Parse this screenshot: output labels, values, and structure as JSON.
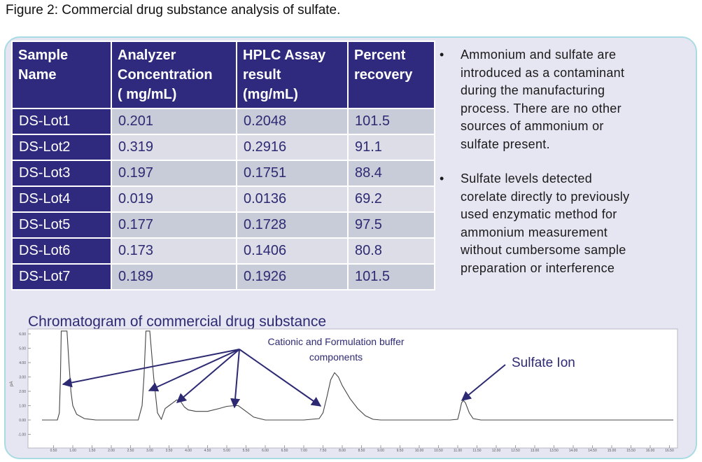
{
  "figure_title": "Figure 2: Commercial drug substance analysis of sulfate.",
  "table": {
    "headers": [
      [
        "Sample",
        "Name"
      ],
      [
        "Analyzer",
        "Concentration",
        "( mg/mL)"
      ],
      [
        "HPLC Assay",
        "result",
        "(mg/mL)"
      ],
      [
        "Percent",
        "recovery"
      ]
    ],
    "rows": [
      {
        "name": "DS-Lot1",
        "analyzer": "0.201",
        "hplc": "0.2048",
        "recovery": "101.5"
      },
      {
        "name": "DS-Lot2",
        "analyzer": "0.319",
        "hplc": "0.2916",
        "recovery": "91.1"
      },
      {
        "name": "DS-Lot3",
        "analyzer": "0.197",
        "hplc": "0.1751",
        "recovery": "88.4"
      },
      {
        "name": "DS-Lot4",
        "analyzer": "0.019",
        "hplc": "0.0136",
        "recovery": "69.2"
      },
      {
        "name": "DS-Lot5",
        "analyzer": "0.177",
        "hplc": "0.1728",
        "recovery": "97.5"
      },
      {
        "name": "DS-Lot6",
        "analyzer": "0.173",
        "hplc": "0.1406",
        "recovery": "80.8"
      },
      {
        "name": "DS-Lot7",
        "analyzer": "0.189",
        "hplc": "0.1926",
        "recovery": "101.5"
      }
    ]
  },
  "bullets": [
    [
      "Ammonium and sulfate are",
      "introduced as a contaminant",
      "during the manufacturing",
      "process. There are no other",
      "sources of ammonium or",
      "sulfate present."
    ],
    [
      "Sulfate levels detected",
      "corelate directly to previously",
      "used enzymatic method for",
      "ammonium measurement",
      "without cumbersome sample",
      "preparation or interference"
    ]
  ],
  "bullet_symbol": "•",
  "chromatogram": {
    "title": "Chromatogram of commercial drug substance",
    "annotation_buffer": [
      "Cationic and Formulation buffer",
      "components"
    ],
    "annotation_sulfate": "Sulfate Ion",
    "ylabel": "pA",
    "colors": {
      "title": "#2d2a73",
      "arrow": "#2d2a73",
      "trace": "#444444"
    }
  },
  "chart_data": {
    "type": "line",
    "title": "Chromatogram of commercial drug substance",
    "xlabel": "",
    "ylabel": "pA",
    "xlim": [
      0.2,
      16.6
    ],
    "ylim": [
      -1.2,
      6.2
    ],
    "x_ticks": [
      "0.50",
      "1.00",
      "1.50",
      "2.00",
      "2.50",
      "3.00",
      "3.50",
      "4.00",
      "4.50",
      "5.00",
      "5.50",
      "6.00",
      "6.50",
      "7.00",
      "7.50",
      "8.00",
      "8.50",
      "9.00",
      "9.50",
      "10.00",
      "10.50",
      "11.00",
      "11.50",
      "12.00",
      "12.50",
      "13.00",
      "13.50",
      "14.00",
      "14.50",
      "15.00",
      "15.50",
      "16.00",
      "16.50"
    ],
    "y_ticks": [
      "6.00",
      "5.00",
      "4.00",
      "3.00",
      "2.00",
      "1.00",
      "0.00",
      "-1.00"
    ],
    "grid": false,
    "series": [
      {
        "x": [
          0.2,
          0.6,
          0.65,
          0.68,
          0.7,
          0.72,
          0.75,
          0.85,
          0.9,
          0.95,
          1.0,
          1.1,
          1.3,
          1.6,
          2.0,
          2.4,
          2.7,
          2.8,
          2.85,
          2.9,
          2.95,
          3.0,
          3.1,
          3.2,
          3.3,
          3.4,
          3.5,
          3.6,
          3.7,
          3.8,
          3.9,
          4.0,
          4.2,
          4.5,
          4.8,
          5.0,
          5.2,
          5.3,
          5.5,
          5.7,
          6.0,
          6.5,
          7.0,
          7.4,
          7.5,
          7.6,
          7.7,
          7.8,
          7.9,
          8.0,
          8.2,
          8.4,
          8.6,
          8.8,
          9.0,
          10.0,
          10.8,
          11.0,
          11.05,
          11.1,
          11.15,
          11.2,
          11.3,
          11.4,
          11.6,
          12.0,
          13.0,
          14.0,
          15.0,
          16.0,
          16.6
        ],
        "y": [
          0.0,
          0.0,
          0.5,
          3.0,
          6.2,
          6.2,
          6.2,
          6.2,
          4.0,
          2.0,
          1.0,
          0.4,
          0.1,
          0.0,
          0.0,
          0.0,
          0.0,
          1.0,
          3.0,
          6.2,
          6.2,
          6.2,
          3.0,
          0.5,
          0.05,
          0.8,
          1.0,
          1.2,
          1.4,
          1.3,
          0.9,
          0.7,
          0.6,
          0.6,
          0.8,
          0.95,
          1.0,
          1.0,
          0.6,
          0.2,
          0.0,
          0.0,
          0.0,
          0.1,
          0.5,
          1.6,
          2.8,
          3.3,
          3.0,
          2.4,
          1.5,
          0.8,
          0.3,
          0.05,
          0.0,
          0.0,
          0.0,
          0.05,
          0.6,
          1.2,
          1.35,
          1.2,
          0.5,
          0.1,
          0.0,
          0.0,
          0.0,
          0.0,
          0.0,
          0.0,
          0.0
        ]
      }
    ]
  }
}
